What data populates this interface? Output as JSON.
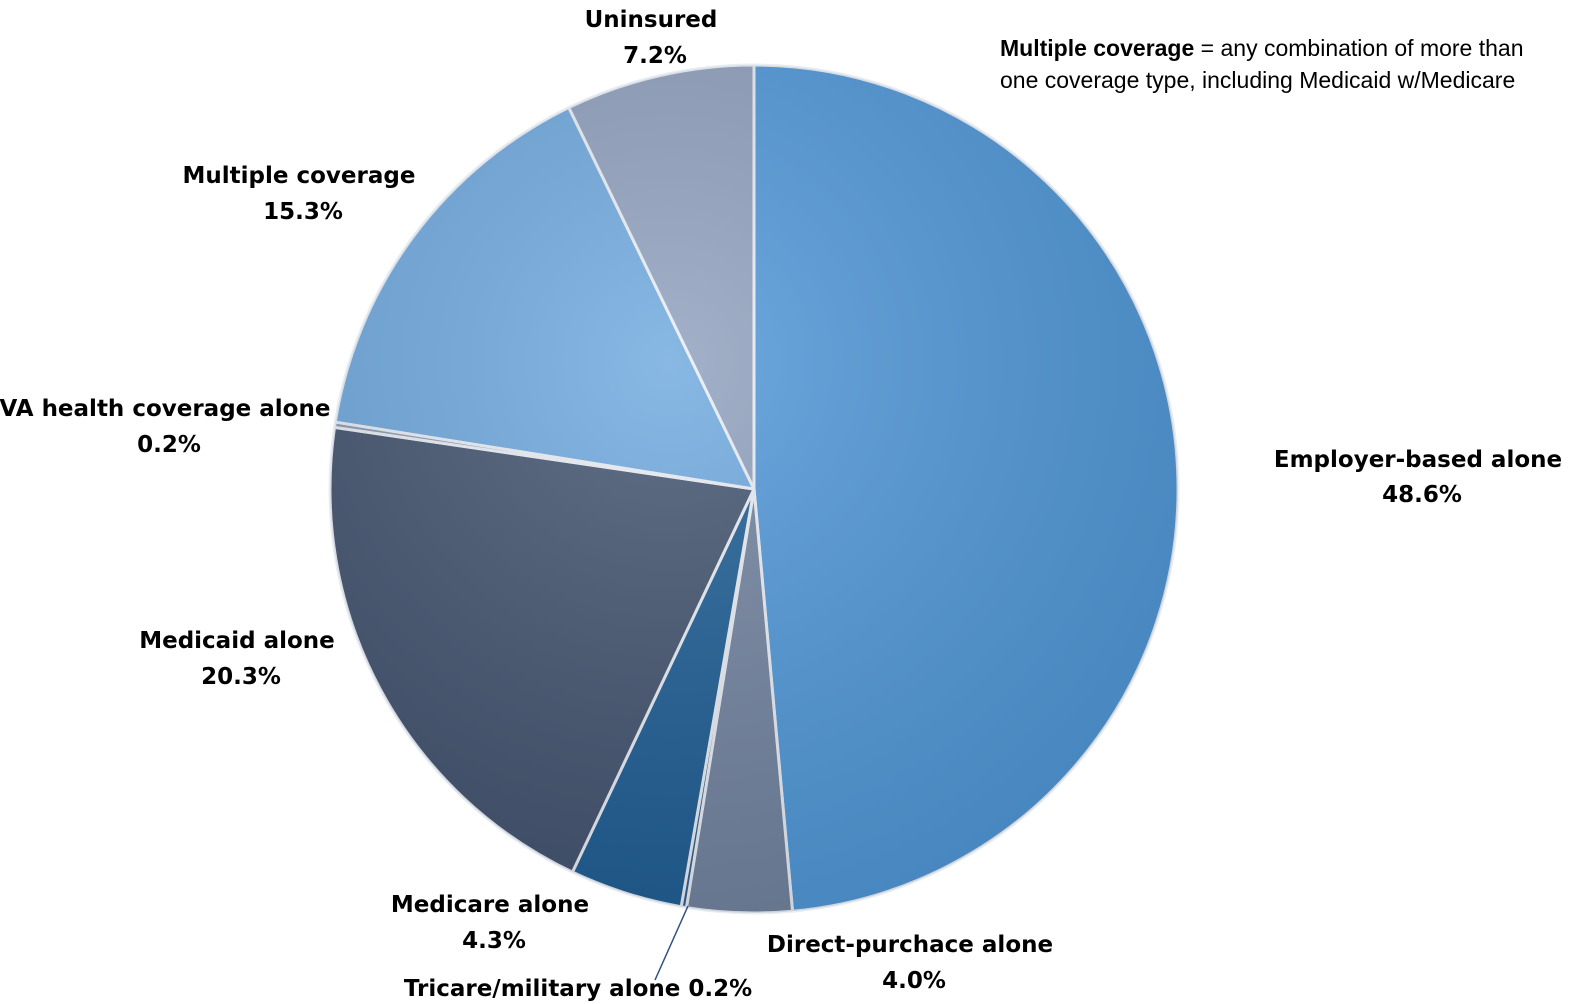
{
  "chart_data": {
    "type": "pie",
    "slices": [
      {
        "label": "Employer-based alone",
        "value": 48.6,
        "display": "48.6%",
        "color": "#4f97d8"
      },
      {
        "label": "Direct-purchace alone",
        "value": 4.0,
        "display": "4.0%",
        "color": "#71839f"
      },
      {
        "label": "Tricare/military alone",
        "value": 0.2,
        "display": "0.2%",
        "color": "#2f5f93"
      },
      {
        "label": "Medicare alone",
        "value": 4.3,
        "display": "4.3%",
        "color": "#1d5d94"
      },
      {
        "label": "Medicaid alone",
        "value": 20.3,
        "display": "20.3%",
        "color": "#42536f"
      },
      {
        "label": "VA health coverage alone",
        "value": 0.2,
        "display": "0.2%",
        "color": "#8a9bb5"
      },
      {
        "label": "Multiple coverage",
        "value": 15.3,
        "display": "15.3%",
        "color": "#6ea8de"
      },
      {
        "label": "Uninsured",
        "value": 7.2,
        "display": "7.2%",
        "color": "#8f9fbd"
      }
    ]
  },
  "note": {
    "term": "Multiple coverage",
    "definition": " = any combination of more than one coverage type, including Medicaid w/Medicare"
  }
}
